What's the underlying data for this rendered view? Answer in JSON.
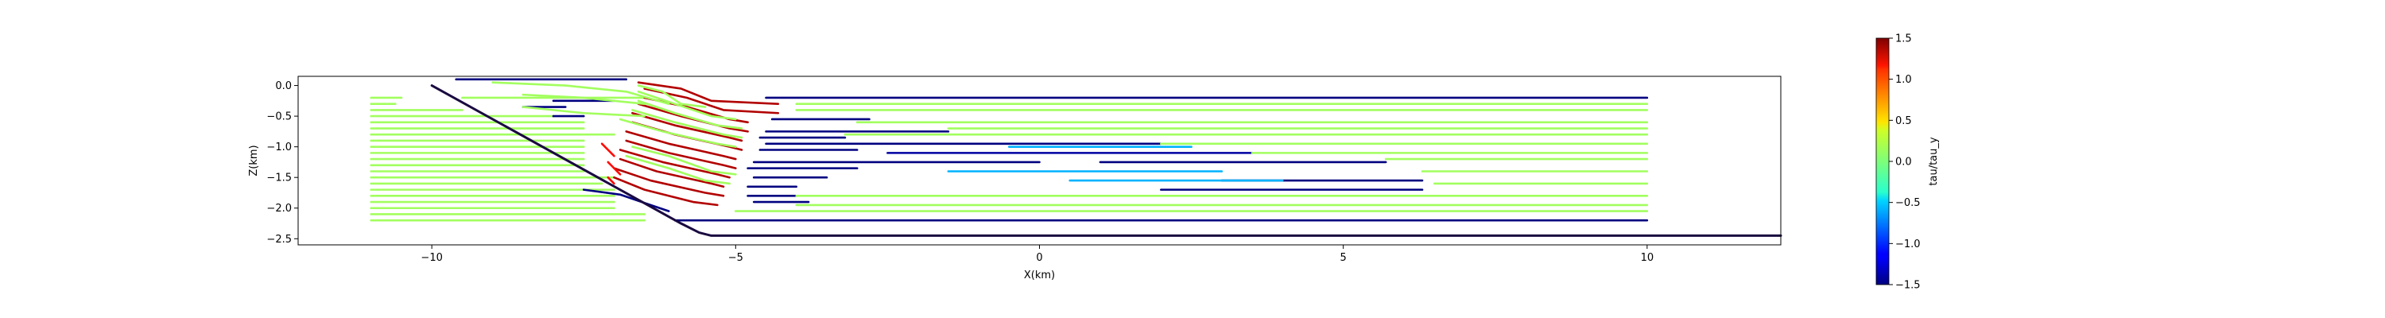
{
  "chart_data": {
    "type": "line",
    "title": "",
    "xlabel": "X(km)",
    "ylabel": "Z(km)",
    "xlim": [
      -12.2,
      12.2
    ],
    "ylim": [
      -2.6,
      0.15
    ],
    "xticks": [
      -10,
      -5,
      0,
      5,
      10
    ],
    "yticks": [
      0.0,
      -0.5,
      -1.0,
      -1.5,
      -2.0,
      -2.5
    ],
    "xtick_labels": [
      "−10",
      "−5",
      "0",
      "5",
      "10"
    ],
    "ytick_labels": [
      "0.0",
      "−0.5",
      "−1.0",
      "−1.5",
      "−2.0",
      "−2.5"
    ],
    "grid": false,
    "colorbar": {
      "label": "tau/tau_y",
      "range": [
        -1.5,
        1.5
      ],
      "ticks": [
        1.5,
        1.0,
        0.5,
        0.0,
        -0.5,
        -1.0,
        -1.5
      ],
      "tick_labels": [
        "1.5",
        "1.0",
        "0.5",
        "0.0",
        "−0.5",
        "−1.0",
        "−1.5"
      ],
      "colormap": "jet"
    },
    "fault": {
      "x": [
        -10.0,
        -5.9,
        -5.6,
        -5.4,
        12.2
      ],
      "z": [
        0.0,
        -2.25,
        -2.4,
        -2.45,
        -2.45
      ],
      "color": "#1a0a40"
    },
    "segments": [
      {
        "x": [
          -11.0,
          -10.5
        ],
        "z": -0.2,
        "value": 0.1
      },
      {
        "x": [
          -11.0,
          -10.6
        ],
        "z": -0.3,
        "value": 0.1
      },
      {
        "x": [
          -9.5,
          -6.5
        ],
        "z": -0.2,
        "value": 0.1
      },
      {
        "x": [
          -11.0,
          -9.5
        ],
        "z": -0.4,
        "value": 0.1
      },
      {
        "x": [
          -11.0,
          -8.0
        ],
        "z": -0.5,
        "value": 0.1
      },
      {
        "x": [
          -11.0,
          -7.5
        ],
        "z": -0.6,
        "value": 0.1
      },
      {
        "x": [
          -11.0,
          -7.5
        ],
        "z": -0.7,
        "value": 0.1
      },
      {
        "x": [
          -11.0,
          -7.0
        ],
        "z": -0.8,
        "value": 0.1
      },
      {
        "x": [
          -11.0,
          -7.5
        ],
        "z": -0.9,
        "value": 0.1
      },
      {
        "x": [
          -11.0,
          -7.5
        ],
        "z": -1.0,
        "value": 0.1
      },
      {
        "x": [
          -11.0,
          -7.5
        ],
        "z": -1.1,
        "value": 0.1
      },
      {
        "x": [
          -11.0,
          -7.5
        ],
        "z": -1.2,
        "value": 0.1
      },
      {
        "x": [
          -11.0,
          -7.5
        ],
        "z": -1.3,
        "value": 0.1
      },
      {
        "x": [
          -11.0,
          -7.5
        ],
        "z": -1.4,
        "value": 0.1
      },
      {
        "x": [
          -11.0,
          -7.0
        ],
        "z": -1.5,
        "value": 0.1
      },
      {
        "x": [
          -11.0,
          -7.2
        ],
        "z": -1.6,
        "value": 0.1
      },
      {
        "x": [
          -11.0,
          -7.0
        ],
        "z": -1.7,
        "value": 0.1
      },
      {
        "x": [
          -11.0,
          -7.0
        ],
        "z": -1.8,
        "value": 0.1
      },
      {
        "x": [
          -11.0,
          -7.0
        ],
        "z": -1.9,
        "value": 0.1
      },
      {
        "x": [
          -11.0,
          -7.0
        ],
        "z": -2.0,
        "value": 0.1
      },
      {
        "x": [
          -11.0,
          -6.5
        ],
        "z": -2.1,
        "value": 0.1
      },
      {
        "x": [
          -11.0,
          -6.5
        ],
        "z": -2.2,
        "value": 0.1
      },
      {
        "x": [
          -4.5,
          10.0
        ],
        "z": -0.2,
        "value": -1.5
      },
      {
        "x": [
          -9.6,
          -6.8
        ],
        "z": 0.1,
        "value": -1.5
      },
      {
        "x": [
          -8.0,
          -7.0
        ],
        "z": -0.25,
        "value": -1.5
      },
      {
        "x": [
          -8.5,
          -7.8
        ],
        "z": -0.35,
        "value": -1.5
      },
      {
        "x": [
          -8.0,
          -7.5
        ],
        "z": -0.5,
        "value": -1.5
      },
      {
        "x": [
          -4.4,
          -2.8
        ],
        "z": -0.55,
        "value": -1.5
      },
      {
        "x": [
          -4.5,
          -1.5
        ],
        "z": -0.75,
        "value": -1.5
      },
      {
        "x": [
          -4.6,
          -3.2
        ],
        "z": -0.85,
        "value": -1.5
      },
      {
        "x": [
          -4.5,
          2.0
        ],
        "z": -0.95,
        "value": -1.5
      },
      {
        "x": [
          -4.6,
          -3.0
        ],
        "z": -1.05,
        "value": -1.5
      },
      {
        "x": [
          -2.5,
          3.5
        ],
        "z": -1.1,
        "value": -1.4
      },
      {
        "x": [
          -4.7,
          0.0
        ],
        "z": -1.25,
        "value": -1.5
      },
      {
        "x": [
          1.0,
          5.7
        ],
        "z": -1.25,
        "value": -1.5
      },
      {
        "x": [
          -4.8,
          -3.0
        ],
        "z": -1.35,
        "value": -1.5
      },
      {
        "x": [
          -4.7,
          -3.5
        ],
        "z": -1.5,
        "value": -1.5
      },
      {
        "x": [
          3.0,
          6.3
        ],
        "z": -1.55,
        "value": -1.5
      },
      {
        "x": [
          -4.8,
          -4.0
        ],
        "z": -1.65,
        "value": -1.5
      },
      {
        "x": [
          2.0,
          6.3
        ],
        "z": -1.7,
        "value": -1.5
      },
      {
        "x": [
          -4.8,
          -4.0
        ],
        "z": -1.8,
        "value": -1.5
      },
      {
        "x": [
          -4.7,
          -3.8
        ],
        "z": -1.9,
        "value": -1.5
      },
      {
        "x": [
          -6.0,
          10.0
        ],
        "z": -2.2,
        "value": -1.5
      },
      {
        "x": [
          -4.0,
          10.0
        ],
        "z": -0.3,
        "value": 0.1
      },
      {
        "x": [
          -4.0,
          10.0
        ],
        "z": -0.4,
        "value": 0.1
      },
      {
        "x": [
          -3.0,
          10.0
        ],
        "z": -0.6,
        "value": 0.1
      },
      {
        "x": [
          -1.5,
          10.0
        ],
        "z": -0.7,
        "value": 0.1
      },
      {
        "x": [
          -3.2,
          10.0
        ],
        "z": -0.8,
        "value": 0.1
      },
      {
        "x": [
          2.0,
          10.0
        ],
        "z": -0.95,
        "value": 0.1
      },
      {
        "x": [
          3.5,
          10.0
        ],
        "z": -1.1,
        "value": 0.1
      },
      {
        "x": [
          5.7,
          10.0
        ],
        "z": -1.2,
        "value": 0.1
      },
      {
        "x": [
          6.3,
          10.0
        ],
        "z": -1.4,
        "value": 0.1
      },
      {
        "x": [
          6.5,
          10.0
        ],
        "z": -1.6,
        "value": 0.1
      },
      {
        "x": [
          -4.0,
          10.0
        ],
        "z": -1.8,
        "value": 0.1
      },
      {
        "x": [
          -4.0,
          10.0
        ],
        "z": -1.95,
        "value": 0.1
      },
      {
        "x": [
          -5.0,
          10.0
        ],
        "z": -2.05,
        "value": 0.1
      },
      {
        "x": [
          -1.5,
          3.0
        ],
        "z": -1.4,
        "value": -0.6
      },
      {
        "x": [
          0.5,
          4.0
        ],
        "z": -1.55,
        "value": -0.6
      },
      {
        "x": [
          -0.5,
          2.5
        ],
        "z": -1.0,
        "value": -0.6
      }
    ],
    "curves": [
      {
        "x": [
          -6.6,
          -5.9,
          -5.4,
          -4.3
        ],
        "z": [
          0.05,
          -0.05,
          -0.25,
          -0.3
        ],
        "value": 1.35
      },
      {
        "x": [
          -6.5,
          -5.8,
          -5.2,
          -4.3
        ],
        "z": [
          -0.05,
          -0.2,
          -0.4,
          -0.45
        ],
        "value": 1.35
      },
      {
        "x": [
          -6.5,
          -5.8,
          -5.1,
          -4.8
        ],
        "z": [
          -0.2,
          -0.35,
          -0.55,
          -0.6
        ],
        "value": 1.35
      },
      {
        "x": [
          -6.6,
          -5.9,
          -5.1,
          -4.8
        ],
        "z": [
          -0.3,
          -0.5,
          -0.7,
          -0.75
        ],
        "value": 1.35
      },
      {
        "x": [
          -6.7,
          -6.0,
          -5.1,
          -4.9
        ],
        "z": [
          -0.45,
          -0.65,
          -0.85,
          -0.9
        ],
        "value": 1.35
      },
      {
        "x": [
          -6.7,
          -6.0,
          -5.1,
          -4.9
        ],
        "z": [
          -0.6,
          -0.8,
          -1.0,
          -1.05
        ],
        "value": 1.35
      },
      {
        "x": [
          -6.8,
          -6.1,
          -5.2,
          -5.0
        ],
        "z": [
          -0.75,
          -0.95,
          -1.15,
          -1.2
        ],
        "value": 1.35
      },
      {
        "x": [
          -6.8,
          -6.1,
          -5.2,
          -5.0
        ],
        "z": [
          -0.9,
          -1.1,
          -1.3,
          -1.35
        ],
        "value": 1.35
      },
      {
        "x": [
          -6.9,
          -6.2,
          -5.3,
          -5.1
        ],
        "z": [
          -1.05,
          -1.25,
          -1.45,
          -1.5
        ],
        "value": 1.35
      },
      {
        "x": [
          -6.9,
          -6.3,
          -5.4,
          -5.2
        ],
        "z": [
          -1.2,
          -1.4,
          -1.6,
          -1.65
        ],
        "value": 1.35
      },
      {
        "x": [
          -7.0,
          -6.4,
          -5.5,
          -5.2
        ],
        "z": [
          -1.35,
          -1.55,
          -1.75,
          -1.8
        ],
        "value": 1.35
      },
      {
        "x": [
          -7.0,
          -6.5,
          -5.7,
          -5.3
        ],
        "z": [
          -1.5,
          -1.7,
          -1.9,
          -1.95
        ],
        "value": 1.35
      },
      {
        "x": [
          -7.2,
          -7.1,
          -7.0
        ],
        "z": [
          -0.95,
          -1.05,
          -1.15
        ],
        "value": 1.1
      },
      {
        "x": [
          -7.1,
          -7.0,
          -6.9
        ],
        "z": [
          -1.25,
          -1.35,
          -1.45
        ],
        "value": 1.1
      },
      {
        "x": [
          -7.1,
          -7.0
        ],
        "z": [
          -1.5,
          -1.6
        ],
        "value": 1.1
      },
      {
        "x": [
          -6.6,
          -6.2,
          -5.9,
          -5.5
        ],
        "z": [
          0.0,
          -0.1,
          -0.3,
          -0.35
        ],
        "value": 0.1
      },
      {
        "x": [
          -6.6,
          -6.0,
          -5.4,
          -5.0
        ],
        "z": [
          -0.1,
          -0.3,
          -0.5,
          -0.55
        ],
        "value": 0.1
      },
      {
        "x": [
          -6.6,
          -6.0,
          -5.3,
          -4.9
        ],
        "z": [
          -0.25,
          -0.45,
          -0.65,
          -0.7
        ],
        "value": 0.1
      },
      {
        "x": [
          -6.7,
          -6.0,
          -5.2,
          -4.9
        ],
        "z": [
          -0.4,
          -0.6,
          -0.8,
          -0.85
        ],
        "value": 0.1
      },
      {
        "x": [
          -6.9,
          -6.2,
          -5.3,
          -5.0
        ],
        "z": [
          -0.55,
          -0.75,
          -0.95,
          -1.0
        ],
        "value": 0.1
      },
      {
        "x": [
          -6.7,
          -6.1,
          -5.4,
          -5.0
        ],
        "z": [
          -1.0,
          -1.15,
          -1.4,
          -1.45
        ],
        "value": 0.1
      },
      {
        "x": [
          -6.8,
          -6.1,
          -5.5,
          -5.1
        ],
        "z": [
          -1.15,
          -1.35,
          -1.55,
          -1.6
        ],
        "value": 0.1
      },
      {
        "x": [
          -9.0,
          -7.8,
          -6.8,
          -6.1
        ],
        "z": [
          0.05,
          0.0,
          -0.1,
          -0.3
        ],
        "value": 0.1
      },
      {
        "x": [
          -8.5,
          -7.5,
          -6.5
        ],
        "z": [
          -0.15,
          -0.2,
          -0.3
        ],
        "value": 0.1
      },
      {
        "x": [
          -8.5,
          -7.5,
          -6.5
        ],
        "z": [
          -0.35,
          -0.45,
          -0.5
        ],
        "value": 0.1
      }
    ],
    "lower_blue_curve": {
      "x": [
        -7.5,
        -6.9,
        -6.4,
        -6.1
      ],
      "z": [
        -1.7,
        -1.78,
        -1.95,
        -2.05
      ],
      "value": -1.5
    }
  }
}
